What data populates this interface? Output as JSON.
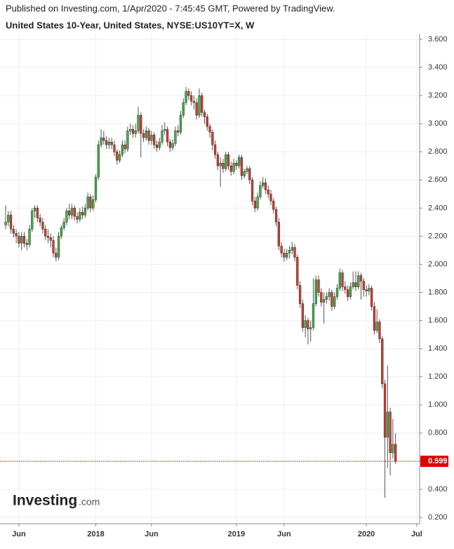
{
  "header": "Published on Investing.com, 1/Apr/2020 - 7:45:45 GMT, Powered by TradingView.",
  "logo": "Investing",
  "logo_suffix": ".com",
  "chart_data": {
    "type": "candlestick",
    "title": "United States 10-Year, United States, NYSE:US10YT=X, W",
    "up_color": "#3fae49",
    "down_color": "#d33a2c",
    "categories": [
      null,
      null,
      null,
      null,
      null,
      "Jun",
      null,
      null,
      null,
      null,
      null,
      null,
      null,
      null,
      null,
      null,
      null,
      null,
      null,
      null,
      null,
      null,
      null,
      null,
      null,
      null,
      null,
      null,
      null,
      null,
      null,
      null,
      null,
      null,
      "2018",
      null,
      null,
      null,
      null,
      null,
      null,
      null,
      null,
      null,
      null,
      null,
      null,
      null,
      null,
      null,
      null,
      null,
      null,
      null,
      null,
      "Jun",
      null,
      null,
      null,
      null,
      null,
      null,
      null,
      null,
      null,
      null,
      null,
      null,
      null,
      null,
      null,
      null,
      null,
      null,
      null,
      null,
      null,
      null,
      null,
      null,
      null,
      null,
      null,
      null,
      null,
      null,
      null,
      "2019",
      null,
      null,
      null,
      null,
      null,
      null,
      null,
      null,
      null,
      null,
      null,
      null,
      null,
      null,
      null,
      null,
      null,
      "Jun",
      null,
      null,
      null,
      null,
      null,
      null,
      null,
      null,
      null,
      null,
      null,
      null,
      null,
      null,
      null,
      null,
      null,
      null,
      null,
      null,
      null,
      null,
      null,
      null,
      null,
      null,
      null,
      null,
      null,
      null,
      "2020",
      null,
      null,
      null,
      null,
      null,
      null,
      null,
      null,
      null,
      null,
      null,
      null,
      null,
      null,
      null,
      null,
      null,
      null,
      "Jul"
    ],
    "open": [
      2.28,
      2.3,
      2.35,
      2.25,
      2.22,
      2.2,
      2.15,
      2.2,
      2.15,
      2.14,
      2.25,
      2.38,
      2.4,
      2.33,
      2.3,
      2.25,
      2.2,
      2.19,
      2.17,
      2.08,
      2.05,
      2.2,
      2.26,
      2.3,
      2.38,
      2.35,
      2.4,
      2.34,
      2.32,
      2.37,
      2.35,
      2.4,
      2.48,
      2.4,
      2.46,
      2.62,
      2.85,
      2.9,
      2.88,
      2.85,
      2.87,
      2.85,
      2.8,
      2.74,
      2.78,
      2.85,
      2.82,
      2.95,
      2.96,
      2.93,
      2.95,
      3.06,
      2.93,
      2.9,
      2.95,
      2.88,
      2.92,
      2.85,
      2.83,
      2.87,
      2.95,
      2.96,
      2.87,
      2.83,
      2.86,
      2.95,
      2.94,
      3.06,
      3.15,
      3.23,
      3.2,
      3.16,
      3.15,
      3.06,
      3.2,
      3.08,
      3.05,
      2.98,
      2.94,
      2.85,
      2.78,
      2.7,
      2.72,
      2.68,
      2.78,
      2.7,
      2.66,
      2.72,
      2.7,
      2.76,
      2.63,
      2.66,
      2.68,
      2.6,
      2.45,
      2.4,
      2.48,
      2.56,
      2.58,
      2.53,
      2.5,
      2.45,
      2.39,
      2.3,
      2.13,
      2.08,
      2.05,
      2.08,
      2.1,
      2.12,
      2.05,
      1.85,
      1.72,
      1.55,
      1.6,
      1.54,
      1.55,
      1.72,
      1.89,
      1.8,
      1.73,
      1.75,
      1.77,
      1.8,
      1.7,
      1.77,
      1.83,
      1.94,
      1.84,
      1.82,
      1.77,
      1.84,
      1.87,
      1.84,
      1.92,
      1.88,
      1.82,
      1.81,
      1.83,
      1.7,
      1.53,
      1.59,
      1.47,
      1.15,
      0.77,
      0.95,
      0.66,
      0.72,
      null,
      null,
      null,
      null,
      null,
      null,
      null,
      null
    ],
    "high": [
      2.42,
      2.38,
      2.38,
      2.28,
      2.25,
      2.23,
      2.23,
      2.23,
      2.18,
      2.28,
      2.4,
      2.42,
      2.42,
      2.36,
      2.33,
      2.28,
      2.25,
      2.22,
      2.2,
      2.12,
      2.23,
      2.28,
      2.33,
      2.4,
      2.43,
      2.43,
      2.42,
      2.37,
      2.4,
      2.41,
      2.43,
      2.51,
      2.5,
      2.49,
      2.64,
      2.88,
      2.96,
      2.95,
      2.91,
      2.9,
      2.9,
      2.88,
      2.82,
      2.81,
      2.88,
      2.88,
      2.98,
      3.0,
      2.99,
      3.0,
      3.12,
      3.08,
      2.96,
      2.98,
      2.97,
      2.95,
      2.94,
      2.88,
      2.9,
      2.99,
      3.01,
      2.98,
      2.89,
      2.89,
      2.98,
      2.99,
      3.09,
      3.18,
      3.26,
      3.25,
      3.23,
      3.2,
      3.18,
      3.25,
      3.22,
      3.1,
      3.07,
      3.0,
      2.96,
      2.88,
      2.8,
      2.76,
      2.75,
      2.8,
      2.8,
      2.73,
      2.75,
      2.74,
      2.78,
      2.78,
      2.68,
      2.7,
      2.7,
      2.62,
      2.48,
      2.51,
      2.59,
      2.62,
      2.61,
      2.56,
      2.53,
      2.47,
      2.41,
      2.33,
      2.16,
      2.11,
      2.11,
      2.13,
      2.16,
      2.14,
      2.07,
      1.88,
      1.75,
      1.64,
      1.62,
      1.6,
      1.9,
      1.92,
      1.92,
      1.83,
      1.8,
      1.8,
      1.83,
      1.82,
      1.8,
      1.86,
      1.97,
      1.96,
      1.88,
      1.85,
      1.87,
      1.95,
      1.95,
      1.95,
      1.94,
      1.9,
      1.85,
      1.86,
      1.85,
      1.73,
      1.68,
      1.61,
      1.49,
      1.18,
      1.28,
      0.98,
      0.9,
      0.8,
      null,
      null,
      null,
      null,
      null,
      null,
      null,
      null
    ],
    "low": [
      2.25,
      2.27,
      2.22,
      2.19,
      2.15,
      2.12,
      2.1,
      2.12,
      2.1,
      2.12,
      2.23,
      2.33,
      2.3,
      2.27,
      2.22,
      2.17,
      2.15,
      2.12,
      2.05,
      2.02,
      2.03,
      2.18,
      2.24,
      2.28,
      2.32,
      2.32,
      2.31,
      2.29,
      2.3,
      2.32,
      2.33,
      2.38,
      2.37,
      2.38,
      2.44,
      2.6,
      2.83,
      2.85,
      2.82,
      2.82,
      2.82,
      2.77,
      2.71,
      2.72,
      2.76,
      2.79,
      2.8,
      2.92,
      2.9,
      2.9,
      2.93,
      2.76,
      2.87,
      2.88,
      2.85,
      2.85,
      2.82,
      2.8,
      2.81,
      2.85,
      2.92,
      2.84,
      2.8,
      2.81,
      2.84,
      2.91,
      2.92,
      3.04,
      3.13,
      3.17,
      3.13,
      3.1,
      3.03,
      3.04,
      3.05,
      3.0,
      2.95,
      2.9,
      2.81,
      2.75,
      2.67,
      2.55,
      2.65,
      2.66,
      2.67,
      2.63,
      2.64,
      2.67,
      2.68,
      2.6,
      2.61,
      2.64,
      2.57,
      2.42,
      2.37,
      2.38,
      2.46,
      2.54,
      2.5,
      2.47,
      2.42,
      2.36,
      2.27,
      2.1,
      2.05,
      2.02,
      2.03,
      2.04,
      2.07,
      2.02,
      1.82,
      1.69,
      1.52,
      1.48,
      1.43,
      1.45,
      1.53,
      1.7,
      1.77,
      1.7,
      1.58,
      1.72,
      1.74,
      1.67,
      1.68,
      1.75,
      1.81,
      1.81,
      1.79,
      1.74,
      1.75,
      1.82,
      1.81,
      1.82,
      1.75,
      1.77,
      1.77,
      1.78,
      1.67,
      1.5,
      1.51,
      1.44,
      1.12,
      0.34,
      0.55,
      0.5,
      0.62,
      0.58,
      null,
      null,
      null,
      null,
      null,
      null,
      null,
      null
    ],
    "close": [
      2.3,
      2.35,
      2.25,
      2.22,
      2.2,
      2.15,
      2.2,
      2.15,
      2.14,
      2.25,
      2.38,
      2.4,
      2.33,
      2.3,
      2.25,
      2.2,
      2.19,
      2.17,
      2.08,
      2.05,
      2.2,
      2.26,
      2.3,
      2.38,
      2.35,
      2.4,
      2.34,
      2.32,
      2.37,
      2.35,
      2.4,
      2.48,
      2.4,
      2.46,
      2.62,
      2.85,
      2.9,
      2.88,
      2.85,
      2.87,
      2.85,
      2.8,
      2.74,
      2.78,
      2.85,
      2.82,
      2.95,
      2.96,
      2.93,
      2.95,
      3.06,
      2.93,
      2.9,
      2.95,
      2.88,
      2.92,
      2.85,
      2.83,
      2.87,
      2.95,
      2.96,
      2.87,
      2.83,
      2.86,
      2.95,
      2.94,
      3.06,
      3.15,
      3.23,
      3.2,
      3.16,
      3.15,
      3.06,
      3.2,
      3.08,
      3.05,
      2.98,
      2.94,
      2.85,
      2.78,
      2.7,
      2.72,
      2.68,
      2.78,
      2.7,
      2.66,
      2.72,
      2.7,
      2.76,
      2.63,
      2.66,
      2.68,
      2.6,
      2.45,
      2.4,
      2.48,
      2.56,
      2.58,
      2.53,
      2.5,
      2.45,
      2.39,
      2.3,
      2.13,
      2.08,
      2.05,
      2.08,
      2.1,
      2.12,
      2.05,
      1.85,
      1.72,
      1.55,
      1.6,
      1.54,
      1.55,
      1.72,
      1.89,
      1.8,
      1.73,
      1.75,
      1.77,
      1.8,
      1.7,
      1.77,
      1.83,
      1.94,
      1.84,
      1.82,
      1.77,
      1.84,
      1.87,
      1.84,
      1.92,
      1.88,
      1.82,
      1.81,
      1.83,
      1.7,
      1.53,
      1.59,
      1.47,
      1.15,
      0.77,
      0.95,
      0.66,
      0.72,
      0.599,
      null,
      null,
      null,
      null,
      null,
      null,
      null,
      null
    ],
    "ylim": [
      0.2,
      3.6
    ],
    "yticks": [
      {
        "value": 0.2,
        "label": "0.200"
      },
      {
        "value": 0.4,
        "label": "0.400"
      },
      {
        "value": 0.6,
        "label": "0.600"
      },
      {
        "value": 0.8,
        "label": "0.800"
      },
      {
        "value": 1.0,
        "label": "1.000"
      },
      {
        "value": 1.2,
        "label": "1.200"
      },
      {
        "value": 1.4,
        "label": "1.400"
      },
      {
        "value": 1.6,
        "label": "1.600"
      },
      {
        "value": 1.8,
        "label": "1.800"
      },
      {
        "value": 2.0,
        "label": "2.000"
      },
      {
        "value": 2.2,
        "label": "2.200"
      },
      {
        "value": 2.4,
        "label": "2.400"
      },
      {
        "value": 2.6,
        "label": "2.600"
      },
      {
        "value": 2.8,
        "label": "2.800"
      },
      {
        "value": 3.0,
        "label": "3.000"
      },
      {
        "value": 3.2,
        "label": "3.200"
      },
      {
        "value": 3.4,
        "label": "3.400"
      },
      {
        "value": 3.6,
        "label": "3.600"
      }
    ],
    "grid": true,
    "last_price_color": "#e00000"
  }
}
